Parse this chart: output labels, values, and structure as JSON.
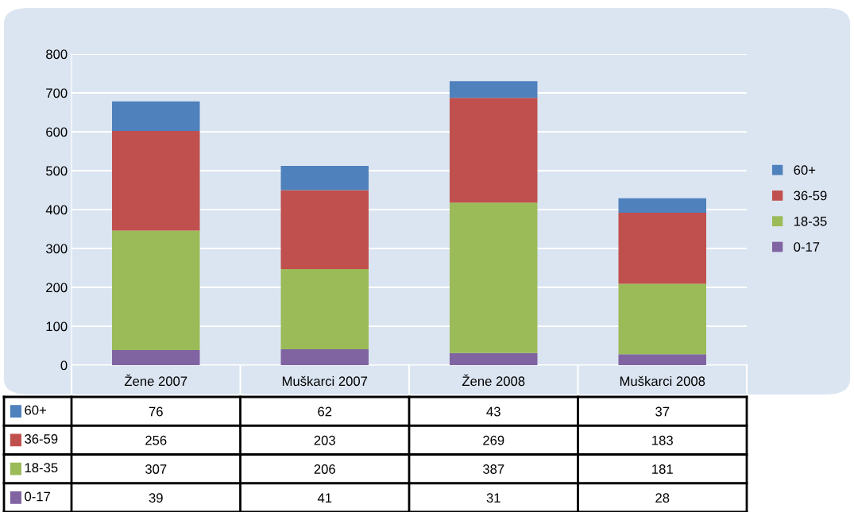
{
  "chart_data": {
    "type": "bar",
    "stacked": true,
    "categories": [
      "Žene 2007",
      "Muškarci 2007",
      "Žene 2008",
      "Muškarci 2008"
    ],
    "series": [
      {
        "name": "0-17",
        "color": "#8064a2",
        "values": [
          39,
          41,
          31,
          28
        ]
      },
      {
        "name": "18-35",
        "color": "#9bbb59",
        "values": [
          307,
          206,
          387,
          181
        ]
      },
      {
        "name": "36-59",
        "color": "#c0504d",
        "values": [
          256,
          203,
          269,
          183
        ]
      },
      {
        "name": "60+",
        "color": "#4f81bd",
        "values": [
          76,
          62,
          43,
          37
        ]
      }
    ],
    "ylim": [
      0,
      800
    ],
    "yticks": [
      0,
      100,
      200,
      300,
      400,
      500,
      600,
      700,
      800
    ],
    "grid": "y",
    "legend": "right",
    "data_labels": true
  }
}
